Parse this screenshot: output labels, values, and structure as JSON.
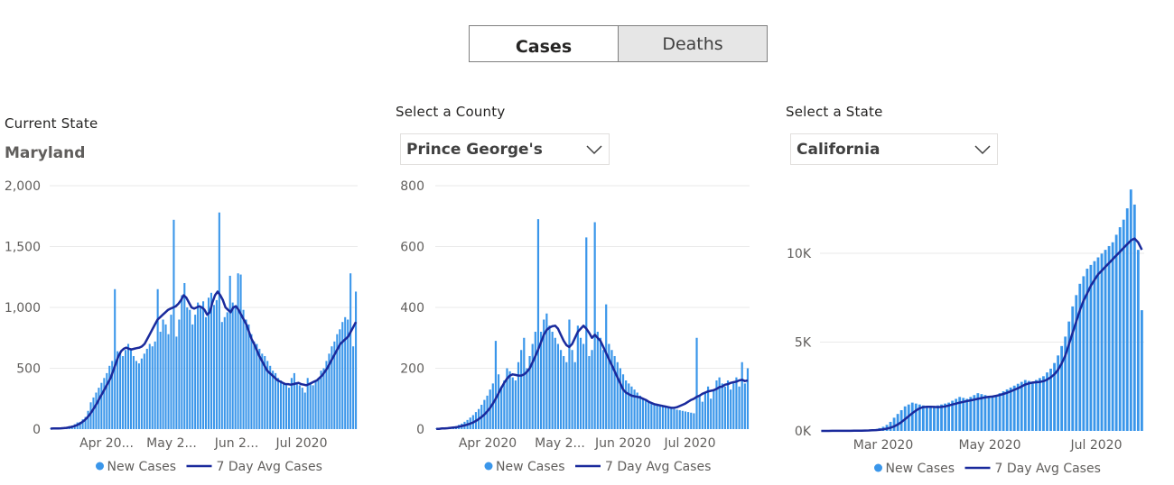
{
  "tabs": {
    "cases": "Cases",
    "deaths": "Deaths",
    "active": "cases"
  },
  "panels": {
    "state": {
      "label": "Current State",
      "value": "Maryland"
    },
    "county": {
      "label": "Select a County",
      "value": "Prince George's"
    },
    "select_state": {
      "label": "Select a State",
      "value": "California"
    }
  },
  "legend": {
    "new_cases": "New Cases",
    "avg": "7 Day Avg Cases"
  },
  "colors": {
    "bar": "#3a96ea",
    "line": "#1a2a9c",
    "grid": "#eaeaea",
    "tick": "#605e5c"
  },
  "chart_data": [
    {
      "type": "bar",
      "title": "",
      "x_ticks": [
        "Apr 20...",
        "May 2...",
        "Jun 2...",
        "Jul 2020"
      ],
      "y_ticks": [
        "0",
        "500",
        "1,000",
        "1,500",
        "2,000"
      ],
      "ylim": [
        0,
        2000
      ],
      "series": [
        {
          "name": "New Cases",
          "type": "bar",
          "values": [
            5,
            6,
            4,
            8,
            10,
            12,
            15,
            25,
            30,
            40,
            55,
            60,
            80,
            100,
            150,
            220,
            260,
            300,
            340,
            380,
            420,
            460,
            520,
            560,
            1150,
            640,
            620,
            600,
            650,
            700,
            650,
            600,
            560,
            540,
            580,
            620,
            660,
            700,
            680,
            720,
            1150,
            800,
            900,
            860,
            780,
            940,
            1720,
            760,
            900,
            1100,
            1200,
            1000,
            980,
            860,
            940,
            1040,
            1000,
            1050,
            920,
            1080,
            1120,
            1020,
            1060,
            1780,
            880,
            920,
            960,
            1260,
            1040,
            1000,
            1280,
            1270,
            980,
            900,
            860,
            780,
            720,
            700,
            660,
            620,
            600,
            560,
            520,
            480,
            460,
            420,
            400,
            380,
            360,
            340,
            420,
            460,
            380,
            360,
            340,
            300,
            420,
            380,
            360,
            400,
            420,
            480,
            500,
            560,
            620,
            680,
            720,
            780,
            820,
            880,
            920,
            900,
            1280,
            680,
            1130
          ]
        },
        {
          "name": "7 Day Avg Cases",
          "type": "line",
          "values": [
            4,
            5,
            5,
            6,
            7,
            8,
            10,
            14,
            18,
            24,
            32,
            42,
            56,
            72,
            94,
            120,
            152,
            186,
            222,
            262,
            300,
            340,
            380,
            420,
            480,
            540,
            600,
            640,
            660,
            670,
            660,
            655,
            660,
            665,
            670,
            680,
            700,
            740,
            780,
            820,
            860,
            900,
            920,
            940,
            960,
            980,
            990,
            1000,
            1010,
            1030,
            1060,
            1100,
            1080,
            1040,
            1000,
            990,
            1000,
            1010,
            1000,
            980,
            940,
            960,
            1040,
            1100,
            1130,
            1100,
            1060,
            1000,
            980,
            960,
            1000,
            1010,
            980,
            940,
            900,
            860,
            800,
            740,
            700,
            650,
            600,
            560,
            520,
            480,
            460,
            440,
            420,
            400,
            390,
            380,
            370,
            370,
            365,
            370,
            375,
            380,
            370,
            365,
            360,
            370,
            380,
            390,
            400,
            420,
            440,
            470,
            500,
            540,
            580,
            620,
            660,
            700,
            720,
            740,
            760,
            800,
            840,
            880
          ]
        }
      ]
    },
    {
      "type": "bar",
      "title": "",
      "x_ticks": [
        "Apr 2020",
        "May 2...",
        "Jun 2020",
        "Jul 2020"
      ],
      "y_ticks": [
        "0",
        "200",
        "400",
        "600",
        "800"
      ],
      "ylim": [
        0,
        800
      ],
      "series": [
        {
          "name": "New Cases",
          "type": "bar",
          "values": [
            2,
            2,
            3,
            4,
            5,
            6,
            8,
            10,
            14,
            18,
            24,
            30,
            38,
            46,
            56,
            66,
            80,
            96,
            110,
            130,
            150,
            290,
            180,
            140,
            160,
            200,
            190,
            170,
            160,
            220,
            260,
            300,
            200,
            240,
            280,
            320,
            690,
            320,
            360,
            380,
            340,
            320,
            300,
            280,
            260,
            240,
            220,
            360,
            260,
            220,
            340,
            300,
            280,
            630,
            240,
            260,
            680,
            320,
            300,
            260,
            410,
            280,
            260,
            240,
            220,
            200,
            180,
            160,
            150,
            140,
            130,
            120,
            110,
            100,
            95,
            90,
            85,
            80,
            78,
            76,
            74,
            72,
            70,
            68,
            66,
            64,
            62,
            60,
            58,
            56,
            54,
            52,
            300,
            110,
            90,
            120,
            140,
            100,
            130,
            160,
            170,
            150,
            140,
            160,
            130,
            150,
            170,
            140,
            220,
            150,
            200
          ]
        },
        {
          "name": "7 Day Avg Cases",
          "type": "line",
          "values": [
            1,
            1,
            2,
            2,
            3,
            4,
            5,
            6,
            8,
            10,
            12,
            15,
            18,
            22,
            27,
            33,
            40,
            48,
            58,
            70,
            84,
            100,
            118,
            136,
            152,
            166,
            176,
            180,
            178,
            176,
            176,
            180,
            188,
            200,
            220,
            240,
            262,
            286,
            310,
            326,
            334,
            338,
            340,
            330,
            310,
            290,
            276,
            270,
            280,
            300,
            320,
            330,
            340,
            330,
            316,
            300,
            310,
            300,
            290,
            270,
            250,
            230,
            210,
            190,
            170,
            150,
            130,
            120,
            115,
            110,
            108,
            106,
            104,
            100,
            96,
            90,
            86,
            82,
            80,
            78,
            76,
            74,
            72,
            70,
            70,
            72,
            76,
            80,
            84,
            90,
            96,
            100,
            106,
            110,
            116,
            120,
            124,
            126,
            128,
            132,
            138,
            140,
            146,
            148,
            152,
            154,
            156,
            160,
            162,
            158,
            160
          ]
        }
      ]
    },
    {
      "type": "bar",
      "title": "",
      "x_ticks": [
        "Mar 2020",
        "May 2020",
        "Jul 2020"
      ],
      "y_ticks": [
        "0K",
        "5K",
        "10K"
      ],
      "ylim": [
        0,
        13000
      ],
      "series": [
        {
          "name": "New Cases",
          "type": "bar",
          "values": [
            2,
            3,
            4,
            5,
            6,
            8,
            10,
            12,
            15,
            20,
            25,
            30,
            40,
            50,
            70,
            100,
            150,
            220,
            320,
            480,
            700,
            900,
            1100,
            1300,
            1400,
            1500,
            1450,
            1400,
            1350,
            1300,
            1250,
            1300,
            1350,
            1400,
            1450,
            1500,
            1600,
            1700,
            1800,
            1750,
            1700,
            1800,
            1900,
            2000,
            1950,
            1900,
            1850,
            1800,
            1900,
            2000,
            2100,
            2200,
            2300,
            2400,
            2500,
            2600,
            2700,
            2650,
            2600,
            2700,
            2800,
            2900,
            3100,
            3300,
            3600,
            4000,
            4500,
            5000,
            5800,
            6600,
            7200,
            7800,
            8200,
            8600,
            8800,
            9000,
            9200,
            9400,
            9600,
            9800,
            10000,
            10400,
            10800,
            11200,
            11800,
            12800,
            12000,
            9600,
            6400
          ]
        },
        {
          "name": "7 Day Avg Cases",
          "type": "line",
          "values": [
            1,
            2,
            2,
            3,
            3,
            4,
            5,
            6,
            7,
            9,
            11,
            14,
            18,
            24,
            32,
            44,
            60,
            84,
            118,
            170,
            240,
            340,
            470,
            620,
            780,
            940,
            1080,
            1200,
            1260,
            1280,
            1280,
            1270,
            1260,
            1270,
            1300,
            1350,
            1400,
            1450,
            1500,
            1540,
            1580,
            1620,
            1660,
            1700,
            1740,
            1780,
            1800,
            1820,
            1860,
            1900,
            1960,
            2020,
            2100,
            2180,
            2260,
            2360,
            2460,
            2520,
            2560,
            2580,
            2600,
            2640,
            2720,
            2840,
            3000,
            3240,
            3580,
            4000,
            4600,
            5200,
            5800,
            6400,
            6900,
            7300,
            7700,
            8000,
            8300,
            8500,
            8700,
            8900,
            9100,
            9300,
            9500,
            9700,
            9900,
            10100,
            10200,
            10000,
            9600
          ]
        }
      ]
    }
  ]
}
